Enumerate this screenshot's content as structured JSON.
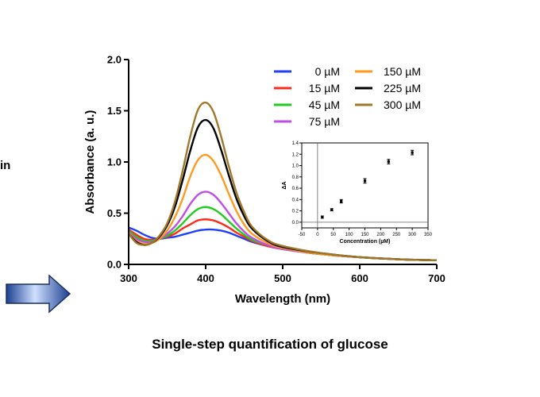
{
  "side_text": "in",
  "caption": "Single-step quantification of glucose",
  "colors": {
    "arrow_fill_dark": "#1c3f8f",
    "arrow_fill_light": "#cfe0ff",
    "arrow_stroke": "#1b2f63"
  },
  "chart_data": [
    {
      "type": "line",
      "title": "",
      "xlabel": "Wavelength (nm)",
      "ylabel": "Absorbance (a. u.)",
      "xlim": [
        300,
        700
      ],
      "ylim": [
        0,
        2.0
      ],
      "xticks": [
        300,
        400,
        500,
        600,
        700
      ],
      "yticks": [
        0.0,
        0.5,
        1.0,
        1.5,
        2.0
      ],
      "ytick_labels": [
        "0.0",
        "0.5",
        "1.0",
        "1.5",
        "2.0"
      ],
      "grid": false,
      "legend_position": "top-right",
      "series": [
        {
          "name": "0 µM",
          "color": "#1f3fff",
          "x": [
            300,
            310,
            320,
            330,
            340,
            350,
            360,
            370,
            380,
            390,
            400,
            410,
            420,
            430,
            440,
            450,
            460,
            480,
            500,
            550,
            600,
            650,
            700
          ],
          "y": [
            0.36,
            0.33,
            0.29,
            0.26,
            0.25,
            0.26,
            0.27,
            0.29,
            0.31,
            0.33,
            0.34,
            0.34,
            0.33,
            0.31,
            0.28,
            0.25,
            0.22,
            0.18,
            0.15,
            0.1,
            0.07,
            0.05,
            0.04
          ]
        },
        {
          "name": "15 µM",
          "color": "#ff2a1a",
          "x": [
            300,
            310,
            320,
            330,
            340,
            350,
            360,
            370,
            380,
            390,
            400,
            410,
            420,
            430,
            440,
            450,
            460,
            480,
            500,
            550,
            600,
            650,
            700
          ],
          "y": [
            0.34,
            0.29,
            0.25,
            0.24,
            0.25,
            0.27,
            0.3,
            0.35,
            0.39,
            0.43,
            0.44,
            0.43,
            0.4,
            0.36,
            0.31,
            0.27,
            0.23,
            0.18,
            0.15,
            0.1,
            0.07,
            0.05,
            0.04
          ]
        },
        {
          "name": "45 µM",
          "color": "#1fcc1f",
          "x": [
            300,
            310,
            320,
            330,
            340,
            350,
            360,
            370,
            380,
            390,
            400,
            410,
            420,
            430,
            440,
            450,
            460,
            480,
            500,
            550,
            600,
            650,
            700
          ],
          "y": [
            0.33,
            0.27,
            0.23,
            0.23,
            0.25,
            0.28,
            0.33,
            0.4,
            0.48,
            0.54,
            0.56,
            0.54,
            0.49,
            0.42,
            0.35,
            0.29,
            0.24,
            0.19,
            0.15,
            0.1,
            0.07,
            0.05,
            0.04
          ]
        },
        {
          "name": "75 µM",
          "color": "#c24ce6",
          "x": [
            300,
            310,
            320,
            330,
            340,
            350,
            360,
            370,
            380,
            390,
            400,
            410,
            420,
            430,
            440,
            450,
            460,
            480,
            500,
            550,
            600,
            650,
            700
          ],
          "y": [
            0.32,
            0.25,
            0.22,
            0.22,
            0.25,
            0.3,
            0.37,
            0.47,
            0.59,
            0.68,
            0.71,
            0.68,
            0.6,
            0.5,
            0.4,
            0.32,
            0.26,
            0.19,
            0.15,
            0.1,
            0.07,
            0.05,
            0.04
          ]
        },
        {
          "name": "150 µM",
          "color": "#ff9a1f",
          "x": [
            300,
            310,
            320,
            330,
            340,
            350,
            360,
            370,
            380,
            390,
            400,
            410,
            420,
            430,
            440,
            450,
            460,
            480,
            500,
            550,
            600,
            650,
            700
          ],
          "y": [
            0.31,
            0.23,
            0.2,
            0.21,
            0.25,
            0.33,
            0.46,
            0.64,
            0.86,
            1.02,
            1.07,
            1.01,
            0.87,
            0.69,
            0.52,
            0.39,
            0.3,
            0.21,
            0.16,
            0.1,
            0.07,
            0.05,
            0.04
          ]
        },
        {
          "name": "225 µM",
          "color": "#000000",
          "x": [
            300,
            310,
            320,
            330,
            340,
            350,
            360,
            370,
            380,
            390,
            400,
            410,
            420,
            430,
            440,
            450,
            460,
            480,
            500,
            550,
            600,
            650,
            700
          ],
          "y": [
            0.3,
            0.22,
            0.19,
            0.21,
            0.27,
            0.38,
            0.56,
            0.82,
            1.11,
            1.34,
            1.41,
            1.33,
            1.12,
            0.87,
            0.64,
            0.47,
            0.35,
            0.23,
            0.17,
            0.11,
            0.07,
            0.05,
            0.04
          ]
        },
        {
          "name": "300 µM",
          "color": "#a0782a",
          "x": [
            300,
            310,
            320,
            330,
            340,
            350,
            360,
            370,
            380,
            390,
            400,
            410,
            420,
            430,
            440,
            450,
            460,
            480,
            500,
            550,
            600,
            650,
            700
          ],
          "y": [
            0.3,
            0.21,
            0.19,
            0.21,
            0.28,
            0.4,
            0.61,
            0.91,
            1.25,
            1.51,
            1.58,
            1.49,
            1.25,
            0.96,
            0.7,
            0.51,
            0.37,
            0.24,
            0.18,
            0.11,
            0.07,
            0.05,
            0.04
          ]
        }
      ]
    },
    {
      "type": "scatter",
      "title": "",
      "xlabel": "Concentration (µM)",
      "ylabel": "ΔA",
      "xlim": [
        -50,
        350
      ],
      "ylim": [
        -0.1,
        1.4
      ],
      "xticks": [
        -50,
        0,
        50,
        100,
        150,
        200,
        250,
        300,
        350
      ],
      "yticks": [
        0.0,
        0.2,
        0.4,
        0.6,
        0.8,
        1.0,
        1.2,
        1.4
      ],
      "ytick_labels": [
        "0.0",
        "0.2",
        "0.4",
        "0.6",
        "0.8",
        "1.0",
        "1.2",
        "1.4"
      ],
      "grid": false,
      "series": [
        {
          "x": [
            15,
            45,
            75,
            150,
            225,
            300
          ],
          "y": [
            0.09,
            0.22,
            0.37,
            0.73,
            1.07,
            1.23
          ],
          "err": [
            0.02,
            0.02,
            0.03,
            0.04,
            0.04,
            0.04
          ]
        }
      ]
    }
  ]
}
